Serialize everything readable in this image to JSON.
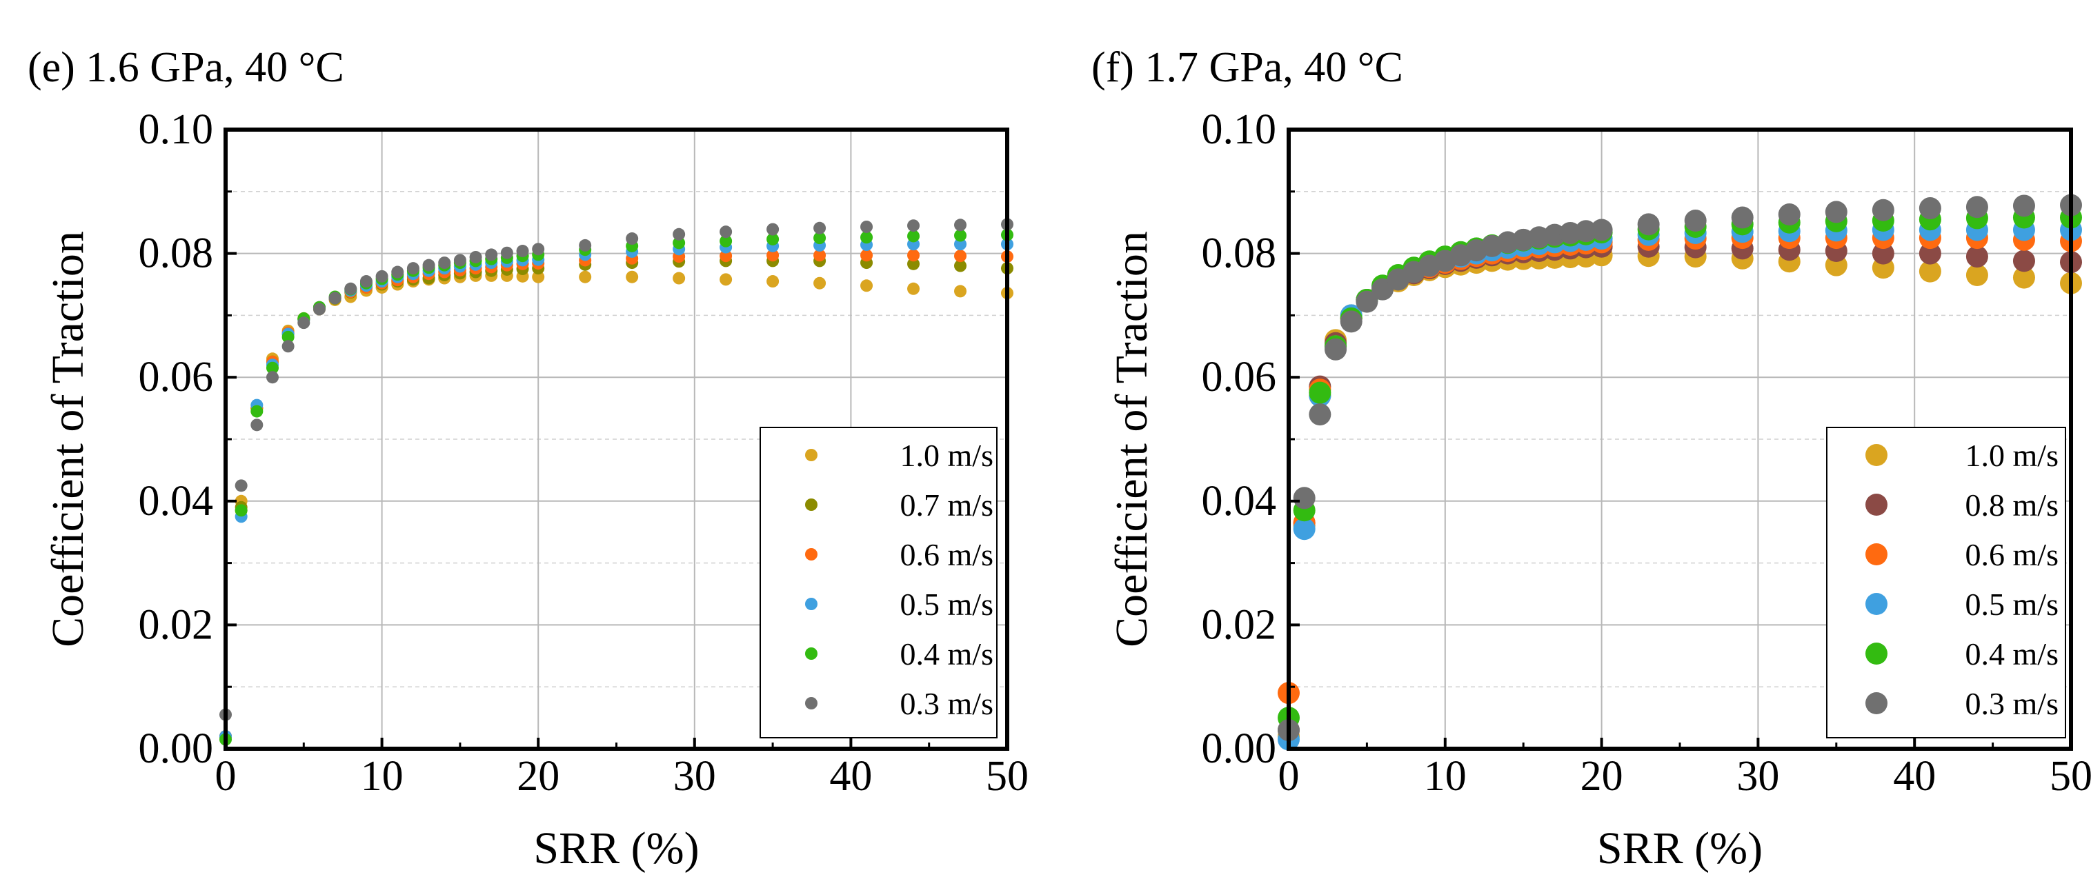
{
  "chart_data": [
    {
      "type": "scatter",
      "panel_label": "(e) 1.6 GPa, 40 °C",
      "xlabel": "SRR (%)",
      "ylabel": "Coefficient of Traction",
      "xlim": [
        0,
        50
      ],
      "ylim": [
        0,
        0.1
      ],
      "xticks": [
        "0",
        "10",
        "20",
        "30",
        "40",
        "50"
      ],
      "yticks": [
        "0.00",
        "0.02",
        "0.04",
        "0.06",
        "0.08",
        "0.10"
      ],
      "grid": true,
      "legend_position": "bottom-right",
      "marker": "small",
      "x": [
        0,
        1,
        2,
        3,
        4,
        5,
        6,
        7,
        8,
        9,
        10,
        11,
        12,
        13,
        14,
        15,
        16,
        17,
        18,
        19,
        20,
        23,
        26,
        29,
        32,
        35,
        38,
        41,
        44,
        47,
        50
      ],
      "series": [
        {
          "name": "1.0 m/s",
          "color": "#DAA520",
          "values": [
            0.002,
            0.04,
            0.055,
            0.063,
            0.0675,
            0.0695,
            0.071,
            0.0725,
            0.073,
            0.074,
            0.0745,
            0.075,
            0.0755,
            0.0758,
            0.076,
            0.0762,
            0.0764,
            0.0764,
            0.0764,
            0.0763,
            0.0762,
            0.0762,
            0.0762,
            0.076,
            0.0758,
            0.0755,
            0.0752,
            0.0748,
            0.0743,
            0.0739,
            0.0736
          ]
        },
        {
          "name": "0.7 m/s",
          "color": "#8B8B00",
          "values": [
            0.002,
            0.039,
            0.055,
            0.0625,
            0.067,
            0.0693,
            0.0712,
            0.0727,
            0.0737,
            0.0745,
            0.075,
            0.0755,
            0.0758,
            0.076,
            0.0765,
            0.0768,
            0.077,
            0.0772,
            0.0774,
            0.0775,
            0.0776,
            0.0782,
            0.0785,
            0.0787,
            0.0788,
            0.0788,
            0.0788,
            0.0785,
            0.0783,
            0.078,
            0.0776
          ]
        },
        {
          "name": "0.6 m/s",
          "color": "#FF6A10",
          "values": [
            0.002,
            0.0385,
            0.055,
            0.0625,
            0.0672,
            0.0695,
            0.0713,
            0.0728,
            0.0738,
            0.0745,
            0.0752,
            0.0757,
            0.0762,
            0.0767,
            0.077,
            0.0773,
            0.0776,
            0.0778,
            0.0781,
            0.0783,
            0.0784,
            0.0789,
            0.0792,
            0.0795,
            0.0796,
            0.0797,
            0.0797,
            0.0797,
            0.0797,
            0.0796,
            0.0795
          ]
        },
        {
          "name": "0.5 m/s",
          "color": "#3FA0E0",
          "values": [
            0.002,
            0.0375,
            0.0555,
            0.062,
            0.067,
            0.0693,
            0.0713,
            0.0728,
            0.074,
            0.0748,
            0.0755,
            0.0762,
            0.0767,
            0.0772,
            0.0776,
            0.0779,
            0.0782,
            0.0785,
            0.0787,
            0.0789,
            0.079,
            0.0798,
            0.0803,
            0.0807,
            0.081,
            0.0812,
            0.0813,
            0.0814,
            0.0815,
            0.0815,
            0.0815
          ]
        },
        {
          "name": "0.4 m/s",
          "color": "#33BB11",
          "values": [
            0.0015,
            0.0385,
            0.0545,
            0.0615,
            0.0665,
            0.0695,
            0.0713,
            0.073,
            0.0742,
            0.0752,
            0.0759,
            0.0766,
            0.0772,
            0.0777,
            0.0781,
            0.0785,
            0.0788,
            0.0791,
            0.0793,
            0.0796,
            0.0798,
            0.0806,
            0.0812,
            0.0817,
            0.082,
            0.0823,
            0.0825,
            0.0826,
            0.0828,
            0.0829,
            0.083
          ]
        },
        {
          "name": "0.3 m/s",
          "color": "#707070",
          "values": [
            0.0055,
            0.0425,
            0.0523,
            0.06,
            0.065,
            0.0688,
            0.071,
            0.0728,
            0.0743,
            0.0755,
            0.0763,
            0.077,
            0.0776,
            0.0781,
            0.0785,
            0.0789,
            0.0794,
            0.0798,
            0.0801,
            0.0804,
            0.0807,
            0.0813,
            0.0824,
            0.0831,
            0.0835,
            0.0839,
            0.0841,
            0.0843,
            0.0845,
            0.0846,
            0.0847
          ]
        }
      ]
    },
    {
      "type": "scatter",
      "panel_label": "(f) 1.7 GPa, 40 °C",
      "xlabel": "SRR (%)",
      "ylabel": "Coefficient of Traction",
      "xlim": [
        0,
        50
      ],
      "ylim": [
        0,
        0.1
      ],
      "xticks": [
        "0",
        "10",
        "20",
        "30",
        "40",
        "50"
      ],
      "yticks": [
        "0.00",
        "0.02",
        "0.04",
        "0.06",
        "0.08",
        "0.10"
      ],
      "grid": true,
      "legend_position": "bottom-right",
      "marker": "large",
      "x": [
        0,
        1,
        2,
        3,
        4,
        5,
        6,
        7,
        8,
        9,
        10,
        11,
        12,
        13,
        14,
        15,
        16,
        17,
        18,
        19,
        20,
        23,
        26,
        29,
        32,
        35,
        38,
        41,
        44,
        47,
        50
      ],
      "series": [
        {
          "name": "1.0 m/s",
          "color": "#DAA520",
          "values": [
            0.002,
            0.036,
            0.057,
            0.066,
            0.07,
            0.0725,
            0.0743,
            0.0755,
            0.0765,
            0.0773,
            0.0778,
            0.0782,
            0.0785,
            0.0788,
            0.079,
            0.0791,
            0.0792,
            0.0793,
            0.0794,
            0.0795,
            0.0797,
            0.0796,
            0.0795,
            0.0792,
            0.0787,
            0.0781,
            0.0777,
            0.0771,
            0.0765,
            0.0761,
            0.0752
          ]
        },
        {
          "name": "0.8 m/s",
          "color": "#8B4A45",
          "values": [
            0.003,
            0.0365,
            0.0585,
            0.0655,
            0.0695,
            0.0725,
            0.0745,
            0.0758,
            0.0768,
            0.0776,
            0.0783,
            0.0788,
            0.0793,
            0.0797,
            0.08,
            0.0802,
            0.0804,
            0.0806,
            0.0808,
            0.081,
            0.0811,
            0.0811,
            0.081,
            0.0808,
            0.0806,
            0.0804,
            0.08,
            0.08,
            0.0795,
            0.0788,
            0.0786
          ]
        },
        {
          "name": "0.6 m/s",
          "color": "#FF6A10",
          "values": [
            0.009,
            0.0365,
            0.058,
            0.065,
            0.0695,
            0.0725,
            0.0745,
            0.076,
            0.077,
            0.0778,
            0.0785,
            0.0791,
            0.0796,
            0.08,
            0.0804,
            0.0807,
            0.081,
            0.0812,
            0.0814,
            0.0816,
            0.0818,
            0.0822,
            0.0824,
            0.0825,
            0.0825,
            0.0825,
            0.0825,
            0.0825,
            0.0825,
            0.0822,
            0.082
          ]
        },
        {
          "name": "0.5 m/s",
          "color": "#3FA0E0",
          "values": [
            0.0015,
            0.0355,
            0.057,
            0.065,
            0.07,
            0.0725,
            0.0747,
            0.0762,
            0.0772,
            0.078,
            0.0788,
            0.0795,
            0.08,
            0.0805,
            0.0809,
            0.0812,
            0.0815,
            0.0818,
            0.082,
            0.0822,
            0.0824,
            0.083,
            0.0833,
            0.0835,
            0.0836,
            0.0837,
            0.0838,
            0.0838,
            0.0838,
            0.0838,
            0.0838
          ]
        },
        {
          "name": "0.4 m/s",
          "color": "#33BB11",
          "values": [
            0.005,
            0.0385,
            0.0575,
            0.065,
            0.0695,
            0.0725,
            0.0748,
            0.0765,
            0.0777,
            0.0787,
            0.0795,
            0.0802,
            0.0808,
            0.0813,
            0.0817,
            0.0821,
            0.0824,
            0.0827,
            0.0829,
            0.0831,
            0.0834,
            0.0839,
            0.0843,
            0.0847,
            0.085,
            0.0852,
            0.0853,
            0.0855,
            0.0857,
            0.0858,
            0.0858
          ]
        },
        {
          "name": "0.3 m/s",
          "color": "#707070",
          "values": [
            0.003,
            0.0405,
            0.054,
            0.0645,
            0.069,
            0.0722,
            0.0742,
            0.0758,
            0.077,
            0.078,
            0.0788,
            0.0797,
            0.0805,
            0.0812,
            0.0818,
            0.0822,
            0.0826,
            0.083,
            0.0833,
            0.0836,
            0.0838,
            0.0847,
            0.0853,
            0.0858,
            0.0863,
            0.0867,
            0.087,
            0.0873,
            0.0875,
            0.0877,
            0.0878
          ]
        }
      ]
    }
  ]
}
